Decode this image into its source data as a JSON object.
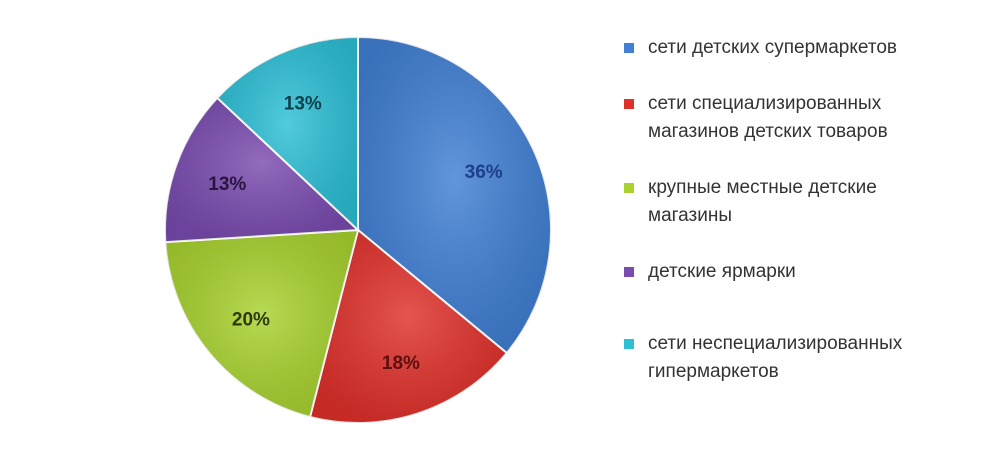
{
  "chart_data": {
    "type": "pie",
    "slices": [
      {
        "label": "сети детских супермаркетов",
        "value": 36,
        "value_label": "36%",
        "color": "#3f7fd4",
        "label_color": "#1f3f8a"
      },
      {
        "label": "сети специализированных магазинов детских товаров",
        "value": 18,
        "value_label": "18%",
        "color": "#e0302a",
        "label_color": "#5a1010"
      },
      {
        "label": "крупные местные детские магазины",
        "value": 20,
        "value_label": "20%",
        "color": "#a8d22e",
        "label_color": "#2f3a0f"
      },
      {
        "label": "детские ярмарки",
        "value": 13,
        "value_label": "13%",
        "color": "#7a4bb0",
        "label_color": "#2a1440"
      },
      {
        "label": "сети неспециализированных гипермаркетов",
        "value": 13,
        "value_label": "13%",
        "color": "#2cbfd6",
        "label_color": "#0f3f48"
      }
    ],
    "legend_position": "right"
  }
}
